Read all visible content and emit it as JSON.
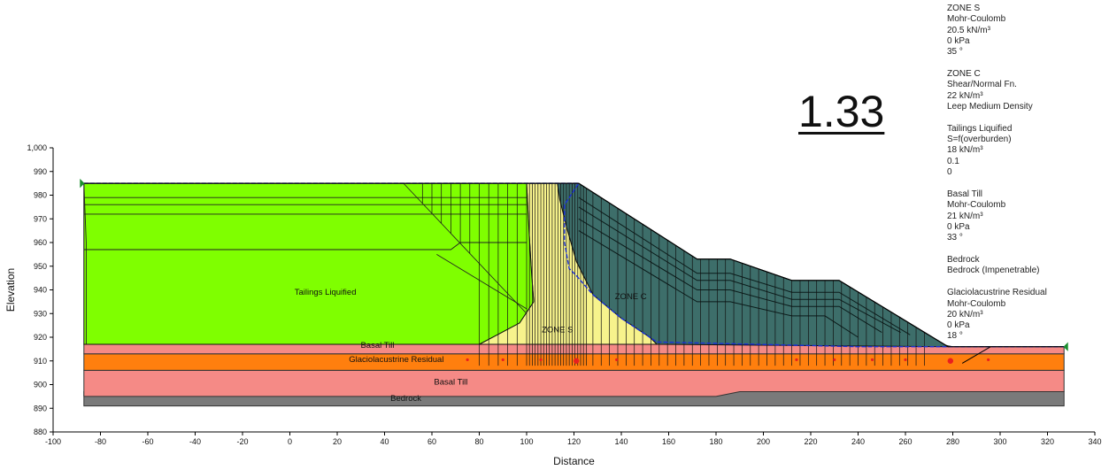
{
  "factor_of_safety": "1.33",
  "axes": {
    "xlabel": "Distance",
    "ylabel": "Elevation",
    "x_ticks": [
      -100,
      -80,
      -60,
      -40,
      -20,
      0,
      20,
      40,
      60,
      80,
      100,
      120,
      140,
      160,
      180,
      200,
      220,
      240,
      260,
      280,
      300,
      320,
      340
    ],
    "y_ticks": [
      880,
      890,
      900,
      910,
      920,
      930,
      940,
      950,
      960,
      970,
      980,
      990,
      1000
    ],
    "y_tick_labels": [
      "880",
      "890",
      "900",
      "910",
      "920",
      "930",
      "940",
      "950",
      "960",
      "970",
      "980",
      "990",
      "1,000"
    ],
    "xlim": [
      -100,
      340
    ],
    "ylim": [
      880,
      1000
    ]
  },
  "region_labels": [
    {
      "text": "Tailings Liquified",
      "x": 15,
      "y": 938
    },
    {
      "text": "ZONE C",
      "x": 144,
      "y": 936
    },
    {
      "text": "ZONE S",
      "x": 113,
      "y": 922
    },
    {
      "text": "Basal Till",
      "x": 37,
      "y": 915.5
    },
    {
      "text": "Glaciolacustrine Residual",
      "x": 45,
      "y": 909.5
    },
    {
      "text": "Basal Till",
      "x": 68,
      "y": 900
    },
    {
      "text": "Bedrock",
      "x": 49,
      "y": 893
    }
  ],
  "legend": [
    {
      "name": "ZONE S",
      "lines": [
        "ZONE S",
        "Mohr-Coulomb",
        "20.5 kN/m³",
        "0 kPa",
        "35 °"
      ]
    },
    {
      "name": "ZONE C",
      "lines": [
        "ZONE C",
        "Shear/Normal Fn.",
        "22 kN/m³",
        "Leep Medium Density"
      ]
    },
    {
      "name": "Tailings Liquified",
      "lines": [
        "Tailings Liquified",
        "S=f(overburden)",
        "18 kN/m³",
        "0.1",
        "0"
      ]
    },
    {
      "name": "Basal Till",
      "lines": [
        "Basal Till",
        "Mohr-Coulomb",
        "21 kN/m³",
        "0 kPa",
        "33 °"
      ]
    },
    {
      "name": "Bedrock",
      "lines": [
        "Bedrock",
        "Bedrock (Impenetrable)"
      ]
    },
    {
      "name": "Glaciolacustrine Residual",
      "lines": [
        "Glaciolacustrine Residual",
        "Mohr-Coulomb",
        "20 kN/m³",
        "0 kPa",
        "18 °"
      ]
    }
  ],
  "colors": {
    "tailings": "#7fff00",
    "zone_c": "#3d6e6a",
    "zone_s": "#f7f38c",
    "basal_till": "#f58a86",
    "glacio": "#ff7f0e",
    "bedrock": "#7a7a7a",
    "piezometric": "#1a2fd6",
    "marker": "#e81f1f"
  }
}
